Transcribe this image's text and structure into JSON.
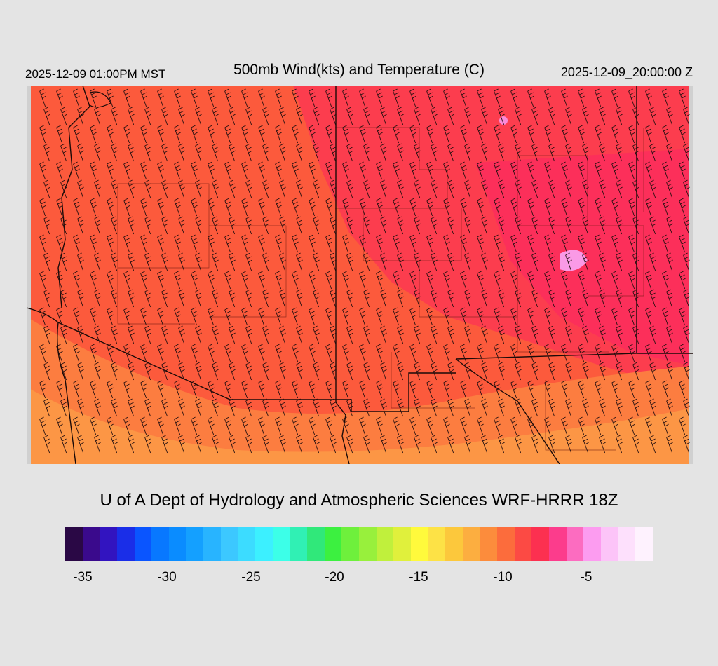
{
  "header": {
    "local_time": "2025-12-09 01:00PM MST",
    "title": "500mb Wind(kts) and Temperature (C)",
    "valid_time": "2025-12-09_20:00:00 Z"
  },
  "credit": "U of A Dept of Hydrology and Atmospheric Sciences WRF-HRRR 18Z",
  "colorbar": {
    "colors": [
      "#2a0845",
      "#3a0a8c",
      "#3214c0",
      "#1a2ee8",
      "#0a55ff",
      "#0878ff",
      "#0a8cff",
      "#14a0ff",
      "#28b4ff",
      "#3cc8ff",
      "#3cdcff",
      "#3cf0ff",
      "#3cffe8",
      "#30f0b4",
      "#30e87a",
      "#3cf040",
      "#6ef03c",
      "#98f03c",
      "#c0f03c",
      "#e0f03c",
      "#fffa3c",
      "#fde246",
      "#fcc83c",
      "#fcae40",
      "#fc8c3c",
      "#fc6c3c",
      "#fc4a44",
      "#fc3050",
      "#fc3c8c",
      "#fc6cc0",
      "#fc9cf0",
      "#fcc4f8",
      "#fde0fc",
      "#fef2fe"
    ],
    "ticks": [
      "-35",
      "-30",
      "-25",
      "-20",
      "-15",
      "-10",
      "-5"
    ]
  },
  "map": {
    "domain": "Four Corners / Southwest US",
    "temperature_field": {
      "dominant_color": "#fc5a3c",
      "warm_pink_color": "#fc3654",
      "hot_spot_color": "#fa9ae6",
      "south_color": "#fc9046"
    }
  }
}
